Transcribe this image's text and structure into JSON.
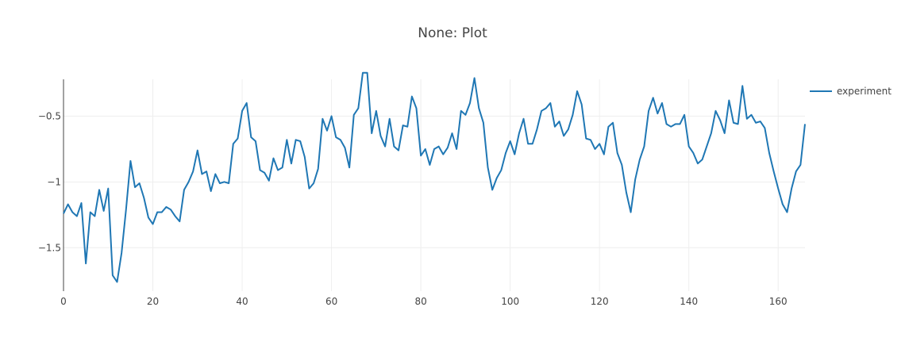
{
  "chart_data": {
    "type": "line",
    "title": "None: Plot",
    "xlabel": "",
    "ylabel": "",
    "xlim": [
      0,
      166
    ],
    "ylim": [
      -1.83,
      -0.22
    ],
    "x_ticks": [
      0,
      20,
      40,
      60,
      80,
      100,
      120,
      140,
      160
    ],
    "x_tick_labels": [
      "0",
      "20",
      "40",
      "60",
      "80",
      "100",
      "120",
      "140",
      "160"
    ],
    "y_ticks": [
      -0.5,
      -1,
      -1.5
    ],
    "y_tick_labels": [
      "−0.5",
      "−1",
      "−1.5"
    ],
    "grid": true,
    "legend_position": "top-right",
    "series": [
      {
        "name": "experiment",
        "color": "#1f77b4",
        "values": [
          -1.24,
          -1.17,
          -1.23,
          -1.26,
          -1.16,
          -1.62,
          -1.23,
          -1.26,
          -1.06,
          -1.22,
          -1.05,
          -1.71,
          -1.76,
          -1.54,
          -1.21,
          -0.84,
          -1.04,
          -1.01,
          -1.12,
          -1.27,
          -1.32,
          -1.23,
          -1.23,
          -1.19,
          -1.21,
          -1.26,
          -1.3,
          -1.06,
          -1.0,
          -0.92,
          -0.76,
          -0.94,
          -0.92,
          -1.07,
          -0.94,
          -1.01,
          -1.0,
          -1.01,
          -0.71,
          -0.67,
          -0.46,
          -0.4,
          -0.66,
          -0.69,
          -0.91,
          -0.93,
          -0.99,
          -0.82,
          -0.91,
          -0.89,
          -0.68,
          -0.86,
          -0.68,
          -0.69,
          -0.81,
          -1.05,
          -1.01,
          -0.9,
          -0.52,
          -0.61,
          -0.5,
          -0.66,
          -0.68,
          -0.74,
          -0.89,
          -0.49,
          -0.44,
          -0.17,
          -0.17,
          -0.63,
          -0.46,
          -0.65,
          -0.73,
          -0.52,
          -0.73,
          -0.76,
          -0.57,
          -0.58,
          -0.35,
          -0.44,
          -0.8,
          -0.75,
          -0.87,
          -0.75,
          -0.73,
          -0.79,
          -0.74,
          -0.63,
          -0.75,
          -0.46,
          -0.49,
          -0.4,
          -0.21,
          -0.44,
          -0.55,
          -0.89,
          -1.06,
          -0.97,
          -0.91,
          -0.78,
          -0.69,
          -0.79,
          -0.63,
          -0.52,
          -0.71,
          -0.71,
          -0.6,
          -0.46,
          -0.44,
          -0.4,
          -0.58,
          -0.54,
          -0.65,
          -0.6,
          -0.49,
          -0.31,
          -0.41,
          -0.67,
          -0.68,
          -0.75,
          -0.71,
          -0.79,
          -0.58,
          -0.55,
          -0.78,
          -0.87,
          -1.08,
          -1.23,
          -0.98,
          -0.83,
          -0.73,
          -0.46,
          -0.36,
          -0.48,
          -0.4,
          -0.56,
          -0.58,
          -0.56,
          -0.56,
          -0.49,
          -0.73,
          -0.78,
          -0.86,
          -0.83,
          -0.73,
          -0.63,
          -0.46,
          -0.53,
          -0.63,
          -0.38,
          -0.55,
          -0.56,
          -0.27,
          -0.52,
          -0.49,
          -0.55,
          -0.54,
          -0.59,
          -0.78,
          -0.92,
          -1.05,
          -1.17,
          -1.23,
          -1.05,
          -0.92,
          -0.87,
          -0.56
        ]
      }
    ]
  }
}
